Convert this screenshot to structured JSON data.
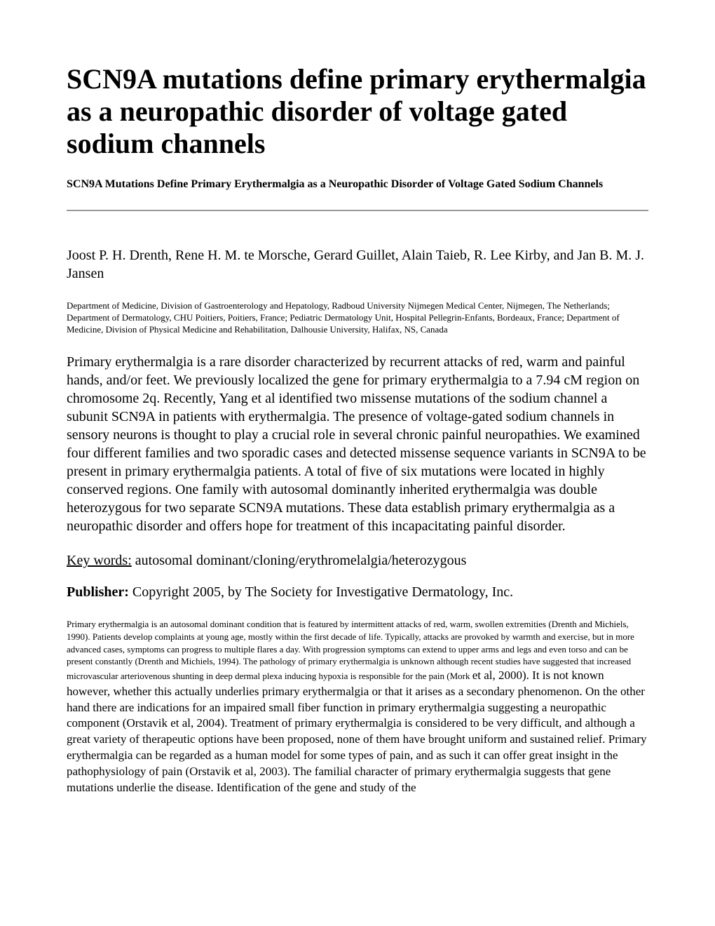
{
  "title": "SCN9A mutations define primary erythermalgia as a neuropathic disorder of voltage gated sodium channels",
  "subtitle": "SCN9A Mutations Define Primary Erythermalgia as a Neuropathic Disorder of Voltage Gated Sodium Channels",
  "authors": "Joost P. H. Drenth, Rene H. M. te Morsche, Gerard Guillet, Alain Taieb, R. Lee Kirby, and Jan B. M. J. Jansen",
  "affiliations": "Department of Medicine, Division of Gastroenterology and Hepatology, Radboud University Nijmegen Medical Center, Nijmegen, The Netherlands; Department of Dermatology, CHU Poitiers, Poitiers, France; Pediatric Dermatology Unit, Hospital Pellegrin-Enfants, Bordeaux, France; Department of Medicine, Division of Physical Medicine and Rehabilitation, Dalhousie University, Halifax, NS, Canada",
  "abstract": "Primary erythermalgia is a rare disorder characterized by recurrent attacks of red, warm and painful hands, and/or feet. We previously localized the gene for primary erythermalgia to a 7.94 cM region on chromosome 2q. Recently, Yang et al identified two missense mutations of the sodium channel a subunit SCN9A in patients with erythermalgia. The presence of voltage-gated sodium channels in sensory neurons is thought to play a crucial role in several chronic painful neuropathies. We examined four different families and two sporadic cases and detected missense sequence variants in SCN9A to be present in primary erythermalgia patients. A total of five of six mutations were located in highly conserved regions. One family with autosomal dominantly inherited erythermalgia was double heterozygous for two separate SCN9A mutations. These data establish primary erythermalgia as a neuropathic disorder and offers hope for treatment of this incapacitating painful disorder.",
  "keywords_label": "Key words:",
  "keywords": " autosomal dominant/cloning/erythromelalgia/heterozygous",
  "publisher_label": "Publisher: ",
  "publisher": "Copyright 2005, by The Society for Investigative Dermatology, Inc.",
  "body_part1": "Primary erythermalgia is an autosomal dominant condition that is featured by intermittent attacks of red, warm, swollen extremities (Drenth and Michiels, 1990). Patients develop complaints at young age, mostly within the first decade of life. Typically, attacks are provoked by warmth and exercise, but in more advanced cases, symptoms can progress to multiple flares a day. With progression symptoms can extend to upper arms and legs and even torso and can be present constantly (Drenth and Michiels, 1994). The pathology of primary erythermalgia is unknown although recent studies have suggested that increased microvascular arteriovenous shunting in deep dermal plexa inducing hypoxia is responsible for the pain (Mork ",
  "body_part2": "et al, 2000). It is not known however, whether this actually underlies primary erythermalgia or that it arises as a secondary phenomenon. On the other hand there are indications for an impaired small fiber function in primary erythermalgia suggesting a neuropathic component (Orstavik et al, 2004). Treatment of primary erythermalgia is considered to be very difficult, and although a great variety of therapeutic options have been proposed, none of them have brought uniform and sustained relief. Primary erythermalgia can be regarded as a human model for some types of pain, and as such it can offer great insight in the pathophysiology of pain (Orstavik et al, 2003). The familial character of primary erythermalgia suggests that gene mutations underlie the disease. Identification of the gene and study of the",
  "colors": {
    "background": "#ffffff",
    "text": "#000000",
    "hr": "#999999"
  },
  "typography": {
    "title_fontsize": 40,
    "subtitle_fontsize": 16,
    "authors_fontsize": 20,
    "affiliations_fontsize": 13,
    "abstract_fontsize": 20,
    "body_small_fontsize": 13,
    "body_large_fontsize": 17,
    "font_family": "Times New Roman"
  }
}
